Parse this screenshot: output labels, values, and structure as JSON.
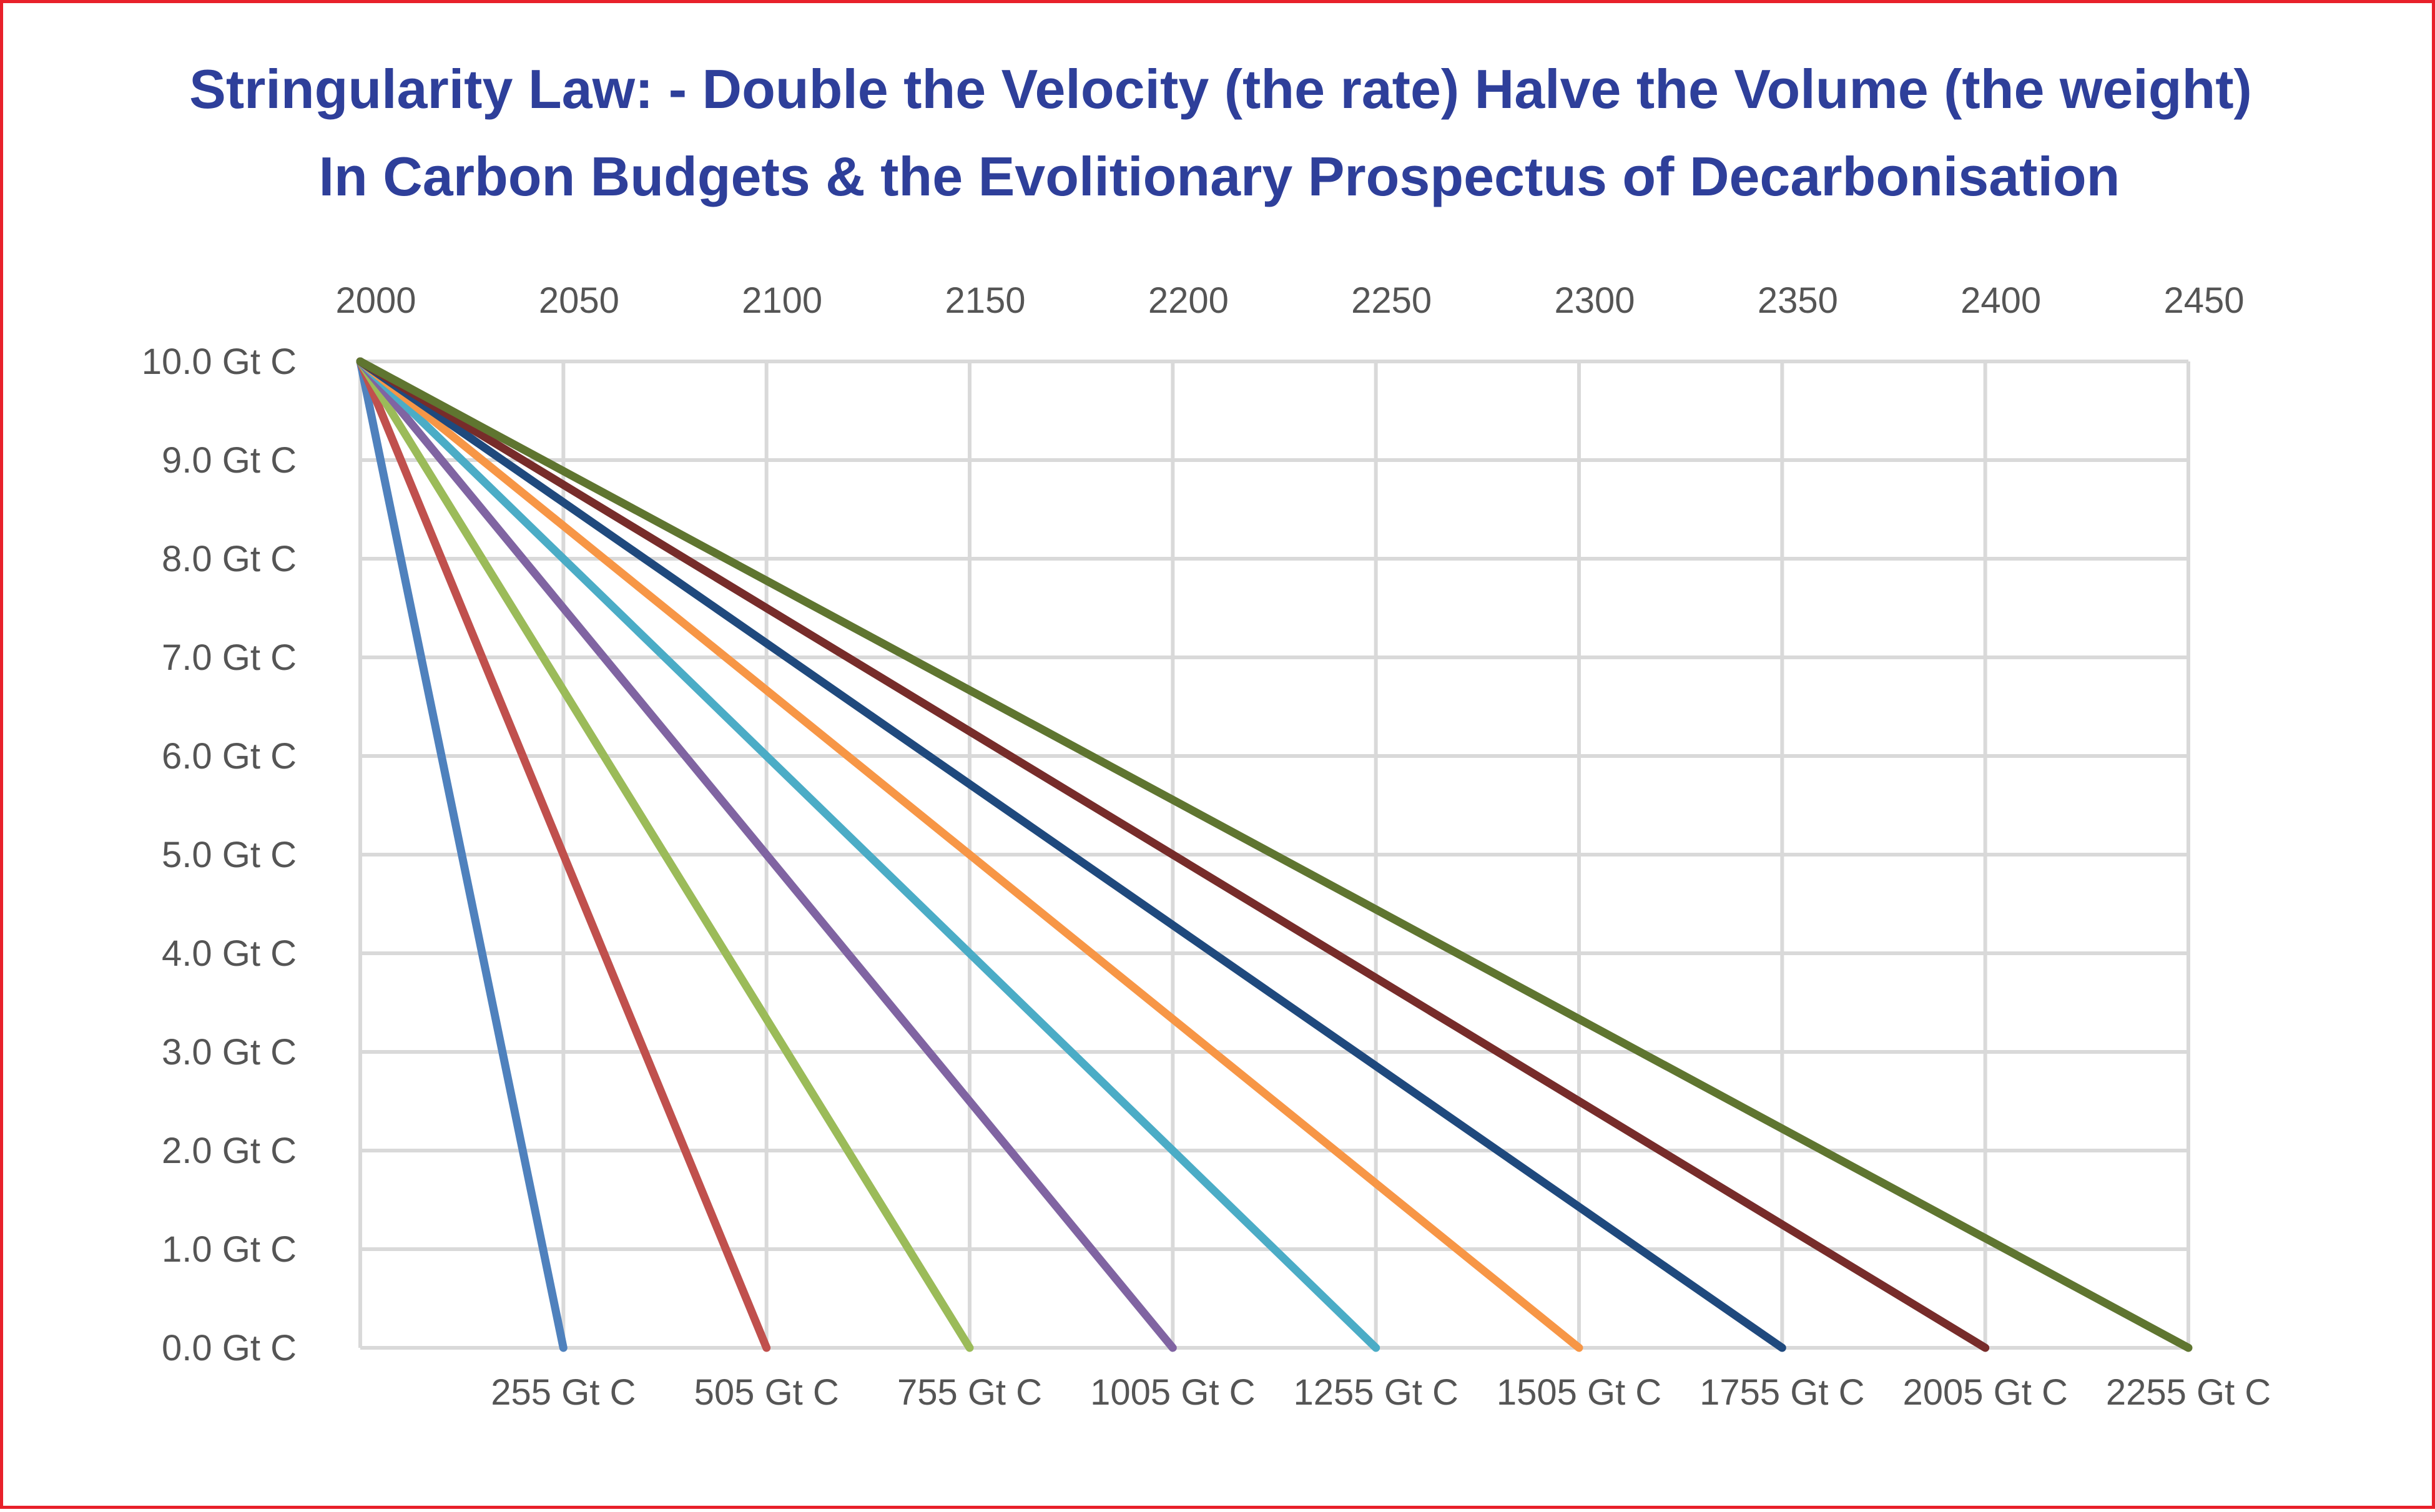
{
  "chart_data": {
    "type": "line",
    "title": [
      "Stringularity Law: - Double the Velocity (the rate) Halve the Volume (the weight)",
      "In Carbon Budgets & the Evolitionary Prospectus of  Decarbonisation"
    ],
    "x_axis_top": {
      "ticks": [
        2000,
        2050,
        2100,
        2150,
        2200,
        2250,
        2300,
        2350,
        2400,
        2450
      ],
      "labels": [
        "2000",
        "2050",
        "2100",
        "2150",
        "2200",
        "2250",
        "2300",
        "2350",
        "2400",
        "2450"
      ],
      "range": [
        2000,
        2450
      ]
    },
    "y_axis": {
      "ticks": [
        10,
        9,
        8,
        7,
        6,
        5,
        4,
        3,
        2,
        1,
        0
      ],
      "labels": [
        "10.0 Gt C",
        "9.0 Gt C",
        "8.0 Gt C",
        "7.0 Gt C",
        "6.0 Gt C",
        "5.0 Gt C",
        "4.0 Gt C",
        "3.0 Gt C",
        "2.0 Gt C",
        "1.0 Gt C",
        "0.0 Gt C"
      ],
      "range": [
        0,
        10
      ]
    },
    "x_axis_bottom_labels": [
      "255 Gt C",
      "505 Gt C",
      "755 Gt C",
      "1005 Gt C",
      "1255 Gt C",
      "1505 Gt C",
      "1755 Gt C",
      "2005 Gt C",
      "2255 Gt C"
    ],
    "grid": true,
    "series": [
      {
        "color": "#4f81bd",
        "points": [
          [
            2000,
            10
          ],
          [
            2050,
            0
          ]
        ]
      },
      {
        "color": "#c0504d",
        "points": [
          [
            2000,
            10
          ],
          [
            2100,
            0
          ]
        ]
      },
      {
        "color": "#9bbb59",
        "points": [
          [
            2000,
            10
          ],
          [
            2150,
            0
          ]
        ]
      },
      {
        "color": "#8064a2",
        "points": [
          [
            2000,
            10
          ],
          [
            2200,
            0
          ]
        ]
      },
      {
        "color": "#4bacc6",
        "points": [
          [
            2000,
            10
          ],
          [
            2250,
            0
          ]
        ]
      },
      {
        "color": "#f79646",
        "points": [
          [
            2000,
            10
          ],
          [
            2300,
            0
          ]
        ]
      },
      {
        "color": "#1f497d",
        "points": [
          [
            2000,
            10
          ],
          [
            2350,
            0
          ]
        ]
      },
      {
        "color": "#772c2a",
        "points": [
          [
            2000,
            10
          ],
          [
            2400,
            0
          ]
        ]
      },
      {
        "color": "#5f7530",
        "points": [
          [
            2000,
            10
          ],
          [
            2450,
            0
          ]
        ]
      }
    ]
  }
}
